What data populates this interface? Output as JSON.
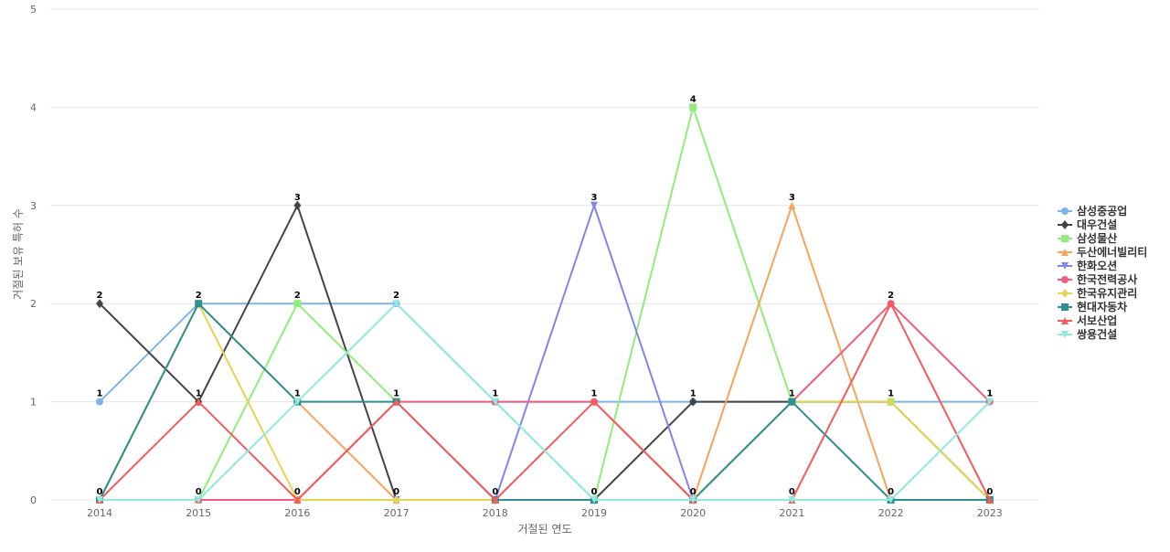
{
  "chart_data": {
    "type": "line",
    "title": "",
    "xlabel": "거절된 연도",
    "ylabel": "거절된 보유 특허 수",
    "x": [
      "2014",
      "2015",
      "2016",
      "2017",
      "2018",
      "2019",
      "2020",
      "2021",
      "2022",
      "2023"
    ],
    "ylim": [
      0,
      5
    ],
    "yticks": [
      0,
      1,
      2,
      3,
      4,
      5
    ],
    "grid": true,
    "legend_position": "right",
    "series": [
      {
        "name": "삼성중공업",
        "color": "#7cb5ec",
        "marker": "circle",
        "values": [
          1,
          2,
          2,
          2,
          1,
          1,
          1,
          1,
          1,
          1
        ]
      },
      {
        "name": "대우건설",
        "color": "#434348",
        "marker": "diamond",
        "values": [
          2,
          1,
          3,
          0,
          0,
          0,
          1,
          1,
          1,
          0
        ]
      },
      {
        "name": "삼성물산",
        "color": "#90ed7d",
        "marker": "square",
        "values": [
          0,
          0,
          2,
          1,
          1,
          0,
          4,
          1,
          1,
          0
        ]
      },
      {
        "name": "두산에너빌리티",
        "color": "#f7a35c",
        "marker": "triangle",
        "values": [
          0,
          2,
          1,
          0,
          0,
          0,
          0,
          3,
          0,
          0
        ]
      },
      {
        "name": "한화오션",
        "color": "#8085e9",
        "marker": "triangle-down",
        "values": [
          0,
          0,
          0,
          0,
          0,
          3,
          0,
          0,
          0,
          0
        ]
      },
      {
        "name": "한국전력공사",
        "color": "#f15c80",
        "marker": "circle",
        "values": [
          0,
          0,
          0,
          1,
          1,
          1,
          0,
          1,
          2,
          1
        ]
      },
      {
        "name": "한국유지관리",
        "color": "#e4d354",
        "marker": "diamond",
        "values": [
          0,
          2,
          0,
          0,
          0,
          0,
          0,
          1,
          1,
          0
        ]
      },
      {
        "name": "현대자동차",
        "color": "#2b908f",
        "marker": "square",
        "values": [
          0,
          2,
          1,
          1,
          0,
          0,
          0,
          1,
          0,
          0
        ]
      },
      {
        "name": "서보산업",
        "color": "#f45b5b",
        "marker": "triangle",
        "values": [
          0,
          1,
          0,
          1,
          0,
          1,
          0,
          0,
          2,
          0
        ]
      },
      {
        "name": "쌍용건설",
        "color": "#91e8e1",
        "marker": "triangle-down",
        "values": [
          0,
          0,
          1,
          2,
          1,
          0,
          0,
          0,
          0,
          1
        ]
      }
    ],
    "data_labels": [
      {
        "x": "2014",
        "y": 2,
        "text": "2"
      },
      {
        "x": "2014",
        "y": 1,
        "text": "1"
      },
      {
        "x": "2014",
        "y": 0,
        "text": "0"
      },
      {
        "x": "2015",
        "y": 2,
        "text": "2"
      },
      {
        "x": "2015",
        "y": 1,
        "text": "1"
      },
      {
        "x": "2015",
        "y": 0,
        "text": "0"
      },
      {
        "x": "2016",
        "y": 3,
        "text": "3"
      },
      {
        "x": "2016",
        "y": 2,
        "text": "2"
      },
      {
        "x": "2016",
        "y": 1,
        "text": "1"
      },
      {
        "x": "2016",
        "y": 0,
        "text": "0"
      },
      {
        "x": "2017",
        "y": 2,
        "text": "2"
      },
      {
        "x": "2017",
        "y": 1,
        "text": "1"
      },
      {
        "x": "2017",
        "y": 0,
        "text": "0"
      },
      {
        "x": "2018",
        "y": 1,
        "text": "1"
      },
      {
        "x": "2018",
        "y": 0,
        "text": "0"
      },
      {
        "x": "2019",
        "y": 3,
        "text": "3"
      },
      {
        "x": "2019",
        "y": 1,
        "text": "1"
      },
      {
        "x": "2019",
        "y": 0,
        "text": "0"
      },
      {
        "x": "2020",
        "y": 4,
        "text": "4"
      },
      {
        "x": "2020",
        "y": 1,
        "text": "1"
      },
      {
        "x": "2020",
        "y": 0,
        "text": "0"
      },
      {
        "x": "2021",
        "y": 3,
        "text": "3"
      },
      {
        "x": "2021",
        "y": 1,
        "text": "1"
      },
      {
        "x": "2021",
        "y": 0,
        "text": "0"
      },
      {
        "x": "2022",
        "y": 2,
        "text": "2"
      },
      {
        "x": "2022",
        "y": 1,
        "text": "1"
      },
      {
        "x": "2022",
        "y": 0,
        "text": "0"
      },
      {
        "x": "2023",
        "y": 1,
        "text": "1"
      },
      {
        "x": "2023",
        "y": 0,
        "text": "0"
      }
    ]
  }
}
